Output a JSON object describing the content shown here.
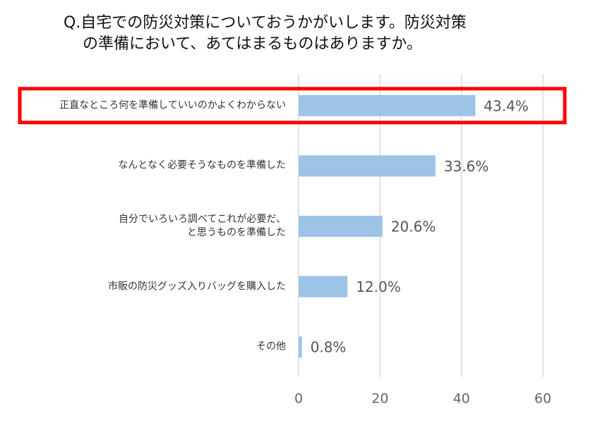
{
  "chart_data": {
    "type": "hbar",
    "title": [
      "Q.自宅での防災対策についておうかがいします。防災対策",
      "の準備において、あてはまるものはありますか。"
    ],
    "categories": [
      "正直なところ何を準備していいのかよくわからない",
      "なんとなく必要そうなものを準備した",
      "自分でいろいろ調べてこれが必要だ、\nと思うものを準備した",
      "市販の防災グッズ入りバッグを購入した",
      "その他"
    ],
    "values": [
      43.4,
      33.6,
      20.6,
      12.0,
      0.8
    ],
    "value_labels": [
      "43.4%",
      "33.6%",
      "20.6%",
      "12.0%",
      "0.8%"
    ],
    "color": "#9dc3e6",
    "xlim": [
      0,
      60
    ],
    "xticks": [
      0,
      20,
      40,
      60
    ],
    "grid": true,
    "highlight": 0,
    "highlight_color": "#ff0000"
  }
}
